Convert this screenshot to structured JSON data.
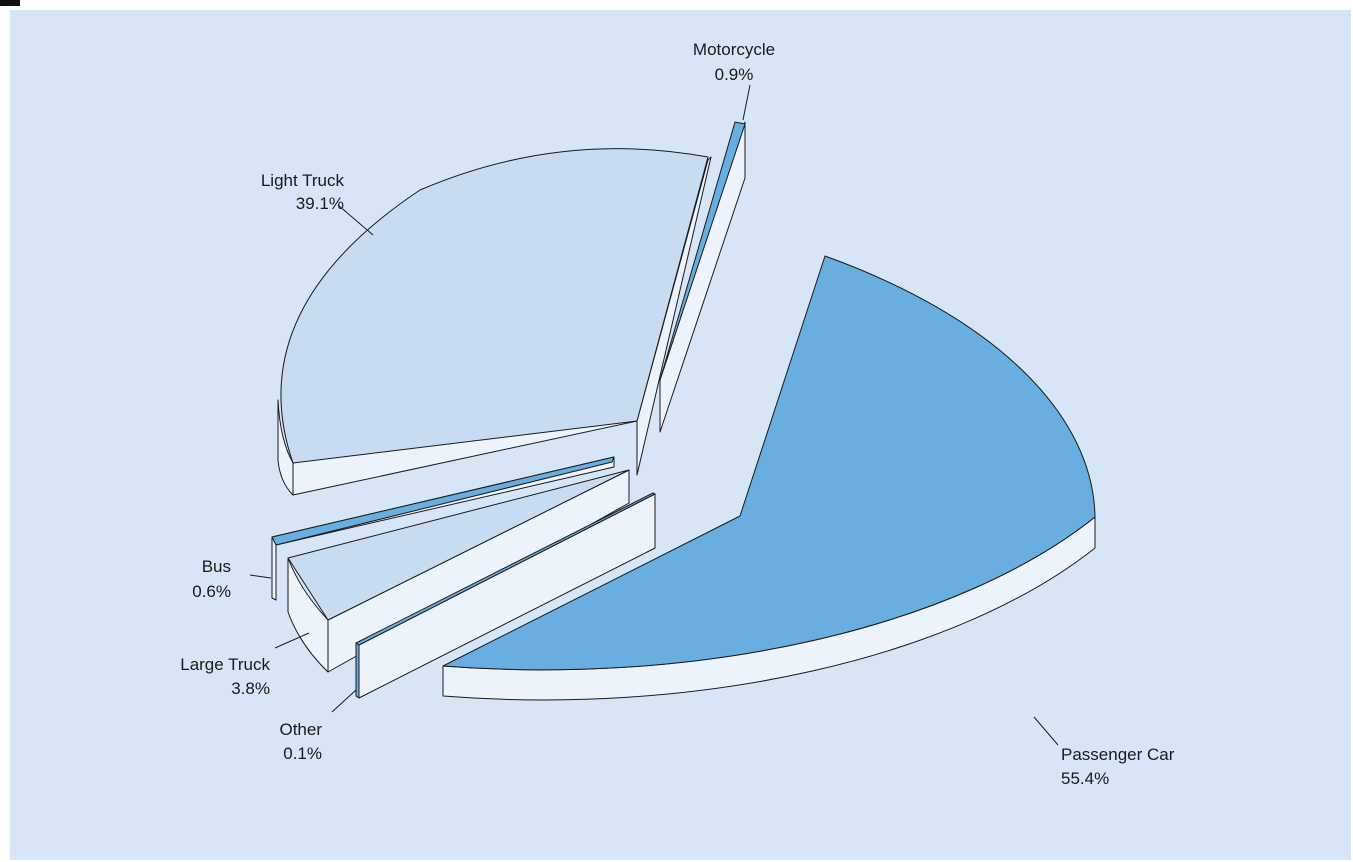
{
  "chart_data": {
    "type": "pie",
    "title": "",
    "slices": [
      {
        "label": "Passenger Car",
        "percent": "55.4%",
        "value": 55.4
      },
      {
        "label": "Light Truck",
        "percent": "39.1%",
        "value": 39.1
      },
      {
        "label": "Motorcycle",
        "percent": "0.9%",
        "value": 0.9
      },
      {
        "label": "Bus",
        "percent": "0.6%",
        "value": 0.6
      },
      {
        "label": "Large Truck",
        "percent": "3.8%",
        "value": 3.8
      },
      {
        "label": "Other",
        "percent": "0.1%",
        "value": 0.1
      }
    ],
    "style": "3d-exploded",
    "colors": {
      "background": "#d6e6f6",
      "top_dark": "#68aee0",
      "top_light": "#c7dcf1",
      "side": "#edf3fb",
      "outline": "#1a1a1a"
    }
  }
}
